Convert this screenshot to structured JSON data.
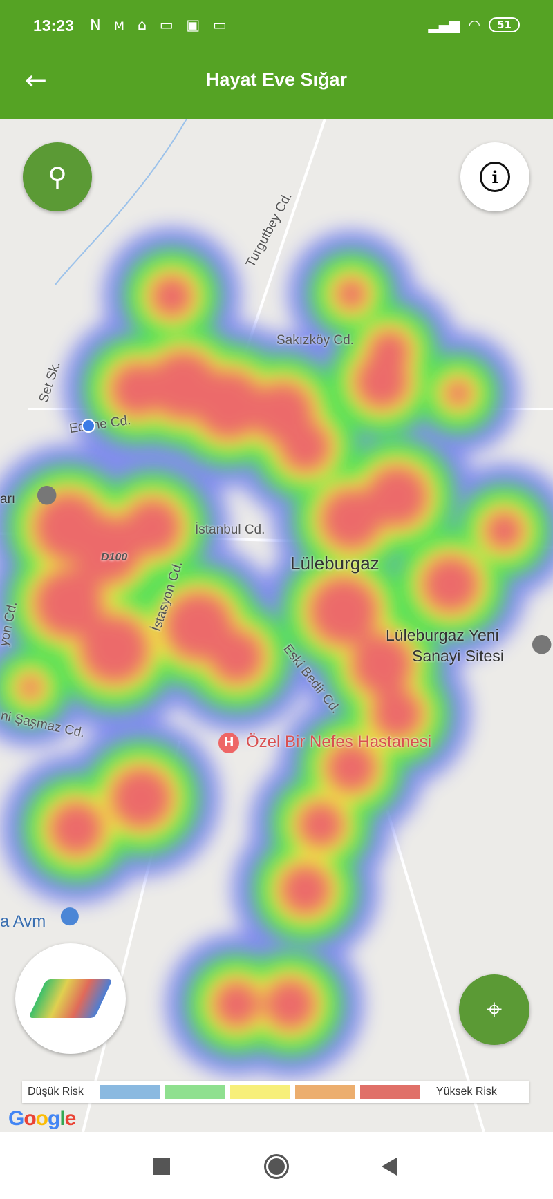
{
  "status_bar": {
    "time": "13:23",
    "notification_icons": [
      "N",
      "M",
      "home",
      "laptop",
      "calendar",
      "laptop"
    ],
    "battery": "51"
  },
  "header": {
    "title": "Hayat Eve Sığar",
    "back_icon": "arrow-left-icon"
  },
  "map": {
    "labels": {
      "turgutbey": "Turgutbey Cd.",
      "sakizkoy": "Sakızköy Cd.",
      "set": "Set Sk.",
      "edirne": "Edirne Cd.",
      "ari": "arı",
      "istanbul": "İstanbul Cd.",
      "d100": "D100",
      "istasyon": "İstasyon Cd.",
      "city": "Lüleburgaz",
      "sanayi1": "Lüleburgaz Yeni",
      "sanayi2": "Sanayi Sitesi",
      "yon": "yon Cd.",
      "eskibedir": "Eski Bedir Cd.",
      "sasmaz": "ni Şaşmaz Cd.",
      "hospital": "Özel Bir Nefes Hastanesi",
      "avm": "a Avm"
    },
    "google_logo": "Google"
  },
  "legend": {
    "low": "Düşük Risk",
    "high": "Yüksek Risk",
    "colors": [
      "#8ab9e0",
      "#8fe08f",
      "#f7ef7a",
      "#ecae6e",
      "#e07068"
    ]
  },
  "heat_colors": {
    "blue": "#6f7cf0",
    "cyan": "#3fd6e6",
    "green": "#4fe05a",
    "yellow": "#f0f040",
    "red": "#ec6a6a"
  },
  "nav": {
    "recent": "square",
    "home": "circle",
    "back": "triangle"
  }
}
